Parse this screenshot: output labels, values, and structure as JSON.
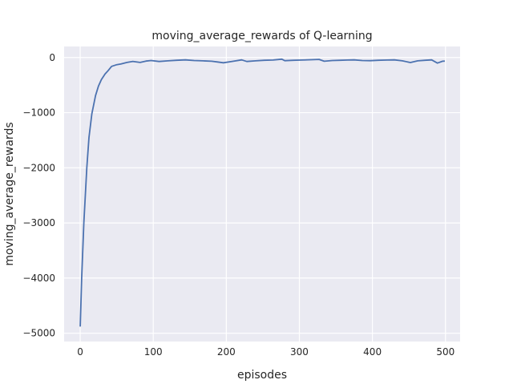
{
  "chart_data": {
    "type": "line",
    "title": "moving_average_rewards of Q-learning",
    "xlabel": "episodes",
    "ylabel": "moving_average_rewards",
    "xlim": [
      -22,
      520
    ],
    "ylim": [
      -5150,
      200
    ],
    "xticks": [
      0,
      100,
      200,
      300,
      400,
      500
    ],
    "yticks": [
      0,
      -1000,
      -2000,
      -3000,
      -4000,
      -5000
    ],
    "grid": true,
    "colors": {
      "line": "#4c72b0",
      "plot_bg": "#eaeaf2",
      "grid": "#ffffff"
    },
    "series": [
      {
        "x": [
          0,
          2,
          5,
          9,
          12,
          16,
          21,
          25,
          29,
          34,
          38,
          43,
          50,
          56,
          64,
          72,
          82,
          90,
          97,
          108,
          120,
          132,
          144,
          156,
          168,
          180,
          188,
          196,
          208,
          221,
          228,
          240,
          252,
          264,
          276,
          280,
          292,
          304,
          316,
          327,
          334,
          345,
          356,
          366,
          375,
          386,
          397,
          408,
          420,
          430,
          441,
          452,
          462,
          472,
          481,
          489,
          496,
          499
        ],
        "y": [
          -4880,
          -4000,
          -3000,
          -2000,
          -1450,
          -1020,
          -690,
          -520,
          -400,
          -300,
          -240,
          -160,
          -130,
          -115,
          -90,
          -70,
          -90,
          -65,
          -55,
          -72,
          -60,
          -50,
          -43,
          -55,
          -60,
          -68,
          -80,
          -95,
          -70,
          -43,
          -72,
          -60,
          -50,
          -45,
          -29,
          -58,
          -50,
          -45,
          -40,
          -34,
          -68,
          -55,
          -50,
          -45,
          -43,
          -55,
          -58,
          -50,
          -45,
          -43,
          -60,
          -91,
          -60,
          -50,
          -43,
          -101,
          -68,
          -65
        ]
      }
    ]
  }
}
